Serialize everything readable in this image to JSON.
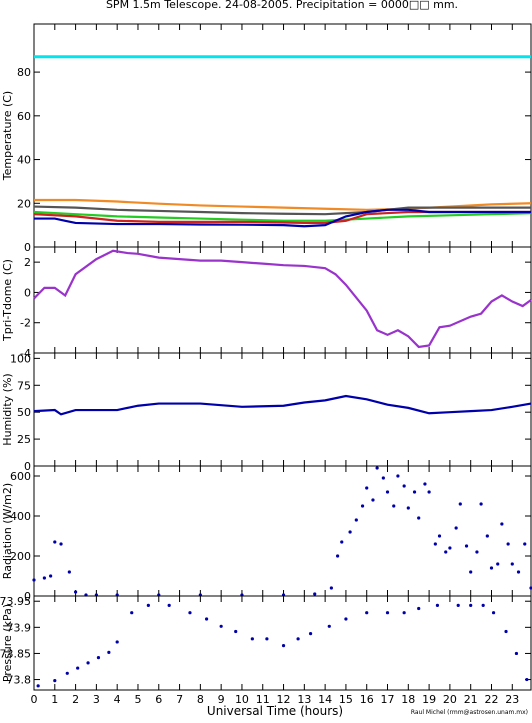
{
  "title": "SPM 1.5m Telescope. 24-08-2005. Precipitation = 0000□□ mm.",
  "credit": "Raul Michel (rmm@astrosen.unam.mx)",
  "xaxis": {
    "label": "Universal Time (hours)",
    "range": [
      0,
      23.9
    ],
    "ticks": [
      "0",
      "1",
      "2",
      "3",
      "4",
      "5",
      "6",
      "7",
      "8",
      "9",
      "10",
      "11",
      "12",
      "13",
      "14",
      "15",
      "16",
      "17",
      "18",
      "19",
      "20",
      "21",
      "22",
      "23"
    ]
  },
  "chart_data": [
    {
      "id": "temperature",
      "type": "line",
      "ylabel": "Temperature (C)",
      "ylim": [
        0,
        102
      ],
      "yticks": [
        0,
        20,
        40,
        60,
        80
      ],
      "series": [
        {
          "color": "#00e5ee",
          "x": [
            0,
            23.9
          ],
          "y": [
            87,
            87
          ]
        },
        {
          "color": "#f08a24",
          "x": [
            0,
            2,
            4,
            6,
            8,
            10,
            12,
            14,
            16,
            18,
            20,
            22,
            23.9
          ],
          "y": [
            21.5,
            21.5,
            20.8,
            19.8,
            19,
            18.5,
            18,
            17.5,
            17,
            17.5,
            18.5,
            19.5,
            20
          ]
        },
        {
          "color": "#555555",
          "x": [
            0,
            2,
            4,
            6,
            8,
            10,
            12,
            14,
            16,
            18,
            20,
            22,
            23.9
          ],
          "y": [
            18.5,
            18,
            17,
            16.5,
            16,
            15.5,
            15.2,
            15,
            16,
            18,
            18,
            18,
            18
          ]
        },
        {
          "color": "#22cc22",
          "x": [
            0,
            2,
            4,
            6,
            8,
            10,
            12,
            14,
            16,
            18,
            20,
            22,
            23.9
          ],
          "y": [
            16,
            15,
            14,
            13.5,
            13,
            12.5,
            12,
            12,
            13,
            14,
            14.5,
            15,
            15.5
          ]
        },
        {
          "color": "#cc2222",
          "x": [
            0,
            2,
            4,
            6,
            8,
            10,
            12,
            13,
            14,
            15,
            16,
            18,
            20,
            22,
            23.9
          ],
          "y": [
            15,
            14,
            12,
            11.5,
            11.5,
            11.5,
            11.2,
            11,
            11,
            12,
            15,
            16,
            16,
            16,
            16
          ]
        },
        {
          "color": "#0000aa",
          "x": [
            0,
            1,
            1.5,
            2,
            4,
            6,
            8,
            10,
            12,
            13,
            14,
            15,
            16,
            17,
            18,
            19,
            20,
            21,
            22,
            23,
            23.9
          ],
          "y": [
            13,
            13,
            12,
            11,
            10.5,
            10.5,
            10.3,
            10.2,
            10,
            9.5,
            10,
            14,
            16,
            17,
            17,
            16,
            16,
            16,
            16,
            16,
            16
          ]
        }
      ]
    },
    {
      "id": "tdiff",
      "type": "line",
      "ylabel": "Tpri-Tdome (C)",
      "ylim": [
        -4,
        3
      ],
      "yticks": [
        -4,
        -2,
        0,
        2
      ],
      "series": [
        {
          "color": "#9933cc",
          "x": [
            0,
            0.5,
            1,
            1.5,
            2,
            3,
            3.8,
            4.5,
            5,
            6,
            7,
            8,
            9,
            10,
            11,
            12,
            13,
            14,
            14.5,
            15,
            16,
            16.5,
            17,
            17.5,
            18,
            18.5,
            19,
            19.5,
            20,
            21,
            21.5,
            22,
            22.5,
            23,
            23.5,
            23.9
          ],
          "y": [
            -0.4,
            0.3,
            0.3,
            -0.2,
            1.2,
            2.2,
            2.75,
            2.6,
            2.55,
            2.3,
            2.2,
            2.1,
            2.1,
            2,
            1.9,
            1.8,
            1.75,
            1.6,
            1.2,
            0.5,
            -1.2,
            -2.5,
            -2.8,
            -2.5,
            -2.9,
            -3.6,
            -3.5,
            -2.3,
            -2.2,
            -1.6,
            -1.4,
            -0.6,
            -0.2,
            -0.6,
            -0.9,
            -0.5
          ]
        }
      ]
    },
    {
      "id": "humidity",
      "type": "line",
      "ylabel": "Humidity (%)",
      "ylim": [
        0,
        105
      ],
      "yticks": [
        0,
        25,
        50,
        75,
        100
      ],
      "series": [
        {
          "color": "#0000aa",
          "x": [
            0,
            1,
            1.3,
            2,
            4,
            5,
            6,
            8,
            10,
            12,
            13,
            14,
            15,
            16,
            17,
            18,
            19,
            20,
            21,
            22,
            23,
            23.9
          ],
          "y": [
            51,
            52,
            48,
            52,
            52,
            56,
            58,
            58,
            55,
            56,
            59,
            61,
            65,
            62,
            57,
            54,
            49,
            50,
            51,
            52,
            55,
            58
          ]
        }
      ]
    },
    {
      "id": "radiation",
      "type": "scatter",
      "ylabel": "Radiation (W/m2)",
      "ylim": [
        0,
        650
      ],
      "yticks": [
        0,
        200,
        400,
        600
      ],
      "series": [
        {
          "color": "#0000aa",
          "x": [
            0,
            0.5,
            0.8,
            1,
            1.3,
            1.7,
            2,
            2.5,
            3,
            4,
            6,
            8,
            10,
            12,
            13.5,
            14.3,
            14.6,
            14.8,
            15.2,
            15.5,
            15.8,
            16,
            16.3,
            16.5,
            16.8,
            17,
            17.3,
            17.5,
            17.8,
            18,
            18.3,
            18.5,
            18.8,
            19,
            19.3,
            19.5,
            19.8,
            20,
            20.3,
            20.5,
            20.8,
            21,
            21.3,
            21.5,
            21.8,
            22,
            22.3,
            22.5,
            22.8,
            23,
            23.3,
            23.6,
            23.9
          ],
          "y": [
            80,
            90,
            100,
            270,
            260,
            120,
            20,
            5,
            5,
            5,
            5,
            5,
            5,
            5,
            10,
            40,
            200,
            270,
            320,
            380,
            450,
            540,
            480,
            640,
            590,
            520,
            450,
            600,
            550,
            440,
            520,
            390,
            560,
            520,
            260,
            300,
            220,
            240,
            340,
            460,
            250,
            120,
            220,
            460,
            300,
            140,
            160,
            360,
            260,
            160,
            120,
            260,
            40
          ]
        }
      ]
    },
    {
      "id": "pressure",
      "type": "scatter",
      "ylabel": "Pressure (kPa)",
      "ylim": [
        73.78,
        73.96
      ],
      "yticks": [
        73.8,
        73.85,
        73.9,
        73.95
      ],
      "ytick_labels": [
        "73.8",
        "73.85",
        "73.9",
        "73.95"
      ],
      "series": [
        {
          "color": "#0000aa",
          "x": [
            0.2,
            1,
            1.6,
            2.1,
            2.6,
            3.1,
            3.6,
            4,
            4.7,
            5.5,
            6.5,
            7.5,
            8.3,
            9,
            9.7,
            10.5,
            11.2,
            12,
            12.7,
            13.3,
            14.2,
            15,
            16,
            17,
            17.8,
            18.5,
            19.4,
            20.4,
            21,
            21.6,
            22.1,
            22.7,
            23.2,
            23.7
          ],
          "y": [
            73.788,
            73.798,
            73.812,
            73.822,
            73.832,
            73.842,
            73.852,
            73.872,
            73.928,
            73.942,
            73.942,
            73.928,
            73.916,
            73.902,
            73.892,
            73.878,
            73.878,
            73.865,
            73.878,
            73.888,
            73.902,
            73.916,
            73.928,
            73.928,
            73.928,
            73.936,
            73.942,
            73.942,
            73.942,
            73.942,
            73.928,
            73.892,
            73.85,
            73.8
          ]
        }
      ]
    }
  ]
}
